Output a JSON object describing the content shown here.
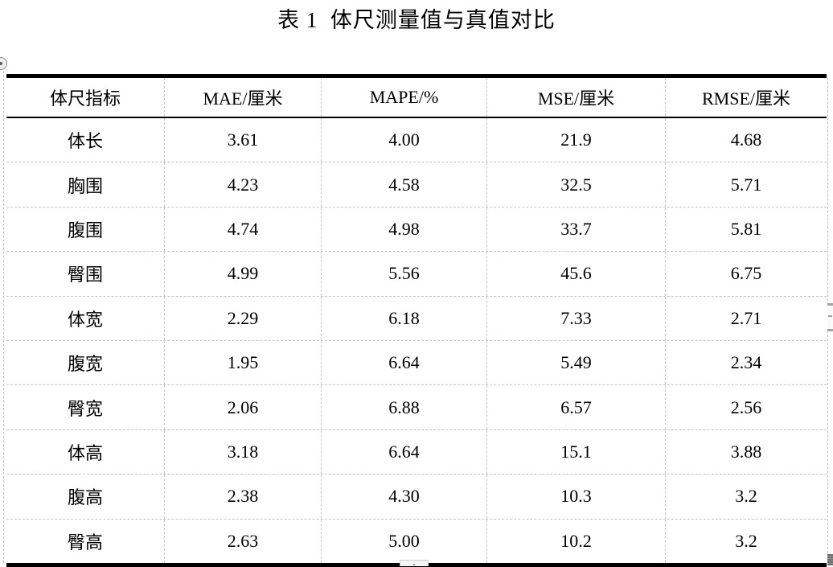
{
  "title": "表 1  体尺测量值与真值对比",
  "table": {
    "headers": [
      "体尺指标",
      "MAE/厘米",
      "MAPE/%",
      "MSE/厘米",
      "RMSE/厘米"
    ],
    "rows": [
      {
        "label": "体长",
        "values": [
          "3.61",
          "4.00",
          "21.9",
          "4.68"
        ]
      },
      {
        "label": "胸围",
        "values": [
          "4.23",
          "4.58",
          "32.5",
          "5.71"
        ]
      },
      {
        "label": "腹围",
        "values": [
          "4.74",
          "4.98",
          "33.7",
          "5.81"
        ]
      },
      {
        "label": "臀围",
        "values": [
          "4.99",
          "5.56",
          "45.6",
          "6.75"
        ]
      },
      {
        "label": "体宽",
        "values": [
          "2.29",
          "6.18",
          "7.33",
          "2.71"
        ]
      },
      {
        "label": "腹宽",
        "values": [
          "1.95",
          "6.64",
          "5.49",
          "2.34"
        ]
      },
      {
        "label": "臀宽",
        "values": [
          "2.06",
          "6.88",
          "6.57",
          "2.56"
        ]
      },
      {
        "label": "体高",
        "values": [
          "3.18",
          "6.64",
          "15.1",
          "3.88"
        ]
      },
      {
        "label": "腹高",
        "values": [
          "2.38",
          "4.30",
          "10.3",
          "3.2"
        ]
      },
      {
        "label": "臀高",
        "values": [
          "2.63",
          "5.00",
          "10.2",
          "3.2"
        ]
      }
    ]
  },
  "colors": {
    "text": "#000000",
    "border_thick": "#000000",
    "gridline_dashed": "#c6c6c6",
    "boundary_dashed": "#bdbdbd",
    "scrollbar_gray": "#a3a3a3"
  }
}
